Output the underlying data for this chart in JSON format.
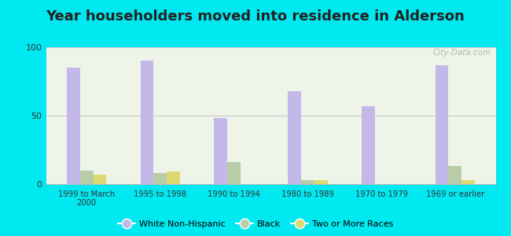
{
  "title": "Year householders moved into residence in Alderson",
  "categories": [
    "1999 to March\n2000",
    "1995 to 1998",
    "1990 to 1994",
    "1980 to 1989",
    "1970 to 1979",
    "1969 or earlier"
  ],
  "white_non_hispanic": [
    85,
    90,
    48,
    68,
    57,
    87
  ],
  "black": [
    10,
    8,
    16,
    3,
    0,
    13
  ],
  "two_or_more_races": [
    7,
    9,
    0,
    3,
    0,
    3
  ],
  "bar_colors": {
    "white_non_hispanic": "#c4b8e8",
    "black": "#b8cca8",
    "two_or_more_races": "#ddd870"
  },
  "background_outer": "#00e8f0",
  "background_inner": "#eef5e8",
  "ylim": [
    0,
    100
  ],
  "yticks": [
    0,
    50,
    100
  ],
  "title_fontsize": 13,
  "watermark": "City-Data.com"
}
